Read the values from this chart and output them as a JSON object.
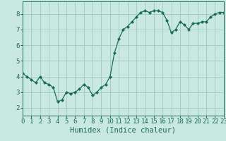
{
  "x": [
    0,
    0.5,
    1,
    1.5,
    2,
    2.5,
    3,
    3.5,
    4,
    4.5,
    5,
    5.5,
    6,
    6.5,
    7,
    7.5,
    8,
    8.5,
    9,
    9.5,
    10,
    10.5,
    11,
    11.5,
    12,
    12.5,
    13,
    13.5,
    14,
    14.5,
    15,
    15.5,
    16,
    16.5,
    17,
    17.5,
    18,
    18.5,
    19,
    19.5,
    20,
    20.5,
    21,
    21.5,
    22,
    22.5,
    23
  ],
  "y": [
    4.2,
    4.0,
    3.8,
    3.6,
    4.0,
    3.6,
    3.5,
    3.3,
    2.4,
    2.5,
    3.0,
    2.9,
    3.0,
    3.2,
    3.5,
    3.3,
    2.8,
    3.0,
    3.3,
    3.5,
    4.0,
    5.5,
    6.4,
    7.0,
    7.2,
    7.5,
    7.8,
    8.1,
    8.2,
    8.1,
    8.2,
    8.2,
    8.1,
    7.6,
    6.8,
    7.0,
    7.5,
    7.3,
    7.0,
    7.4,
    7.4,
    7.5,
    7.5,
    7.8,
    8.0,
    8.1,
    8.1
  ],
  "line_color": "#1a6b5a",
  "marker": "D",
  "markersize": 2.0,
  "bg_color": "#c8e8e0",
  "grid_color": "#a0c8c0",
  "xlabel": "Humidex (Indice chaleur)",
  "xlim": [
    0,
    23
  ],
  "ylim": [
    1.5,
    8.8
  ],
  "xticks": [
    0,
    1,
    2,
    3,
    4,
    5,
    6,
    7,
    8,
    9,
    10,
    11,
    12,
    13,
    14,
    15,
    16,
    17,
    18,
    19,
    20,
    21,
    22,
    23
  ],
  "yticks": [
    2,
    3,
    4,
    5,
    6,
    7,
    8
  ],
  "xlabel_fontsize": 7.5,
  "tick_fontsize": 6.5
}
